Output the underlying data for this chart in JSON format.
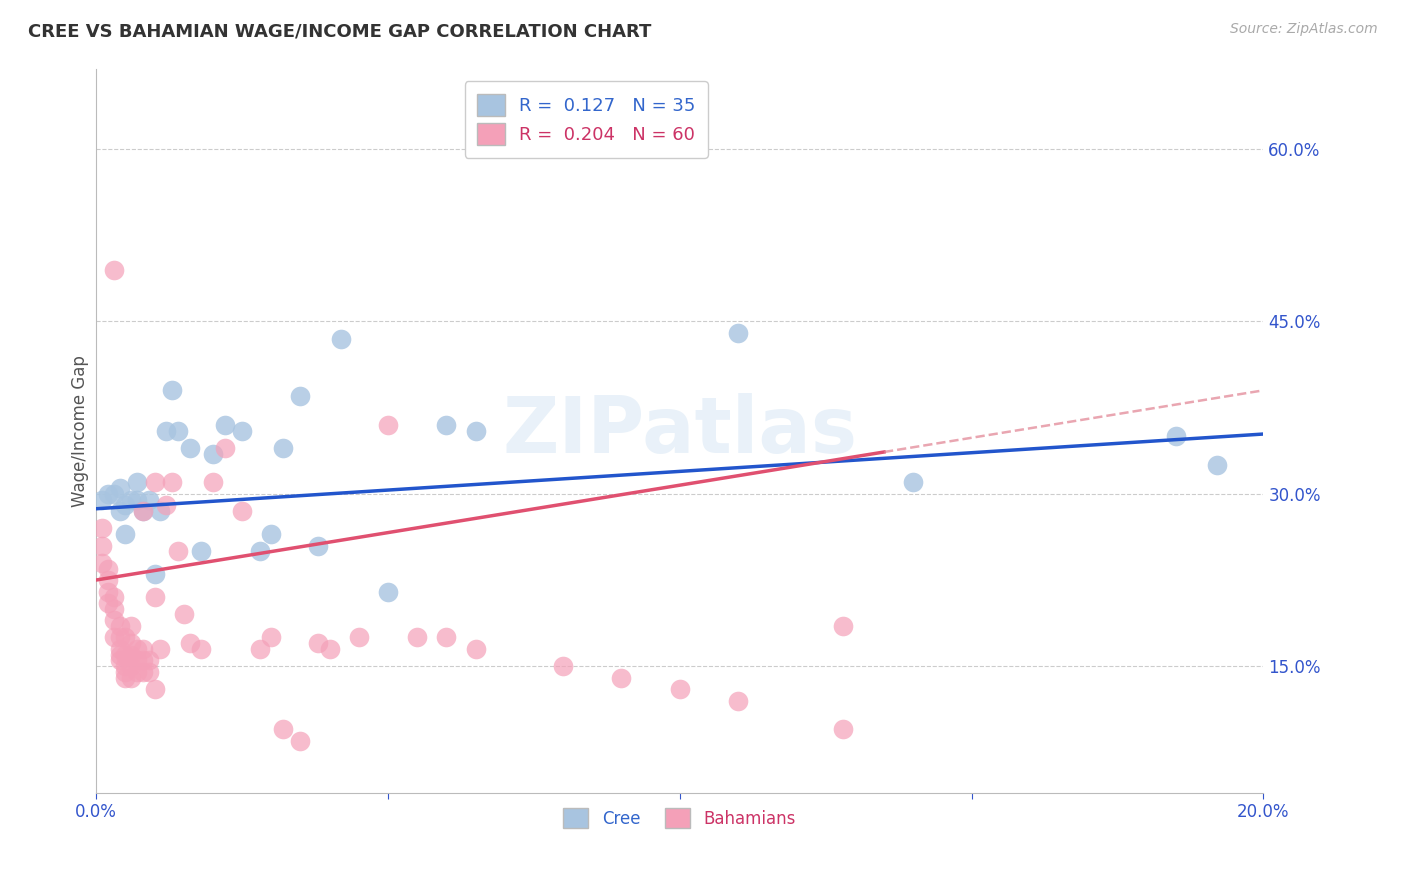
{
  "title": "CREE VS BAHAMIAN WAGE/INCOME GAP CORRELATION CHART",
  "source": "Source: ZipAtlas.com",
  "ylabel": "Wage/Income Gap",
  "xlim": [
    0.0,
    0.2
  ],
  "ylim": [
    0.04,
    0.67
  ],
  "y_ticks_right": [
    0.15,
    0.3,
    0.45,
    0.6
  ],
  "y_tick_labels_right": [
    "15.0%",
    "30.0%",
    "45.0%",
    "60.0%"
  ],
  "cree_color": "#a8c4e0",
  "bahamian_color": "#f4a0b8",
  "cree_line_color": "#2255cc",
  "bahamian_line_color": "#e05070",
  "cree_R": 0.127,
  "cree_N": 35,
  "bahamian_R": 0.204,
  "bahamian_N": 60,
  "watermark": "ZIPatlas",
  "cree_x": [
    0.001,
    0.002,
    0.003,
    0.004,
    0.004,
    0.005,
    0.005,
    0.006,
    0.007,
    0.007,
    0.008,
    0.009,
    0.01,
    0.011,
    0.012,
    0.013,
    0.014,
    0.016,
    0.018,
    0.02,
    0.022,
    0.025,
    0.028,
    0.03,
    0.032,
    0.035,
    0.038,
    0.042,
    0.05,
    0.06,
    0.065,
    0.11,
    0.14,
    0.185,
    0.192
  ],
  "cree_y": [
    0.295,
    0.3,
    0.3,
    0.285,
    0.305,
    0.265,
    0.29,
    0.295,
    0.295,
    0.31,
    0.285,
    0.295,
    0.23,
    0.285,
    0.355,
    0.39,
    0.355,
    0.34,
    0.25,
    0.335,
    0.36,
    0.355,
    0.25,
    0.265,
    0.34,
    0.385,
    0.255,
    0.435,
    0.215,
    0.36,
    0.355,
    0.44,
    0.31,
    0.35,
    0.325
  ],
  "bahamian_x": [
    0.001,
    0.001,
    0.001,
    0.002,
    0.002,
    0.002,
    0.002,
    0.003,
    0.003,
    0.003,
    0.003,
    0.004,
    0.004,
    0.004,
    0.004,
    0.004,
    0.005,
    0.005,
    0.005,
    0.005,
    0.005,
    0.006,
    0.006,
    0.006,
    0.006,
    0.007,
    0.007,
    0.007,
    0.008,
    0.008,
    0.008,
    0.009,
    0.009,
    0.01,
    0.01,
    0.011,
    0.012,
    0.013,
    0.014,
    0.015,
    0.016,
    0.018,
    0.02,
    0.022,
    0.025,
    0.028,
    0.03,
    0.032,
    0.035,
    0.038,
    0.04,
    0.045,
    0.05,
    0.06,
    0.065,
    0.08,
    0.09,
    0.1,
    0.11,
    0.128
  ],
  "bahamian_y": [
    0.27,
    0.255,
    0.24,
    0.235,
    0.225,
    0.215,
    0.205,
    0.21,
    0.2,
    0.19,
    0.175,
    0.185,
    0.175,
    0.165,
    0.16,
    0.155,
    0.175,
    0.16,
    0.15,
    0.145,
    0.14,
    0.17,
    0.16,
    0.15,
    0.14,
    0.165,
    0.155,
    0.145,
    0.165,
    0.155,
    0.145,
    0.155,
    0.145,
    0.21,
    0.31,
    0.165,
    0.29,
    0.31,
    0.25,
    0.195,
    0.17,
    0.165,
    0.31,
    0.34,
    0.285,
    0.165,
    0.175,
    0.095,
    0.085,
    0.17,
    0.165,
    0.175,
    0.36,
    0.175,
    0.165,
    0.15,
    0.14,
    0.13,
    0.12,
    0.185
  ],
  "bahamian_extra_x": [
    0.003,
    0.006,
    0.008,
    0.01,
    0.055,
    0.128
  ],
  "bahamian_extra_y": [
    0.495,
    0.185,
    0.285,
    0.13,
    0.175,
    0.095
  ],
  "trend_cree_x0": 0.0,
  "trend_cree_y0": 0.287,
  "trend_cree_x1": 0.2,
  "trend_cree_y1": 0.352,
  "trend_bah_x0": 0.0,
  "trend_bah_y0": 0.225,
  "trend_bah_x1": 0.2,
  "trend_bah_y1": 0.39,
  "trend_bah_solid_end": 0.135,
  "trend_bah_dashed_color": "#e08090"
}
